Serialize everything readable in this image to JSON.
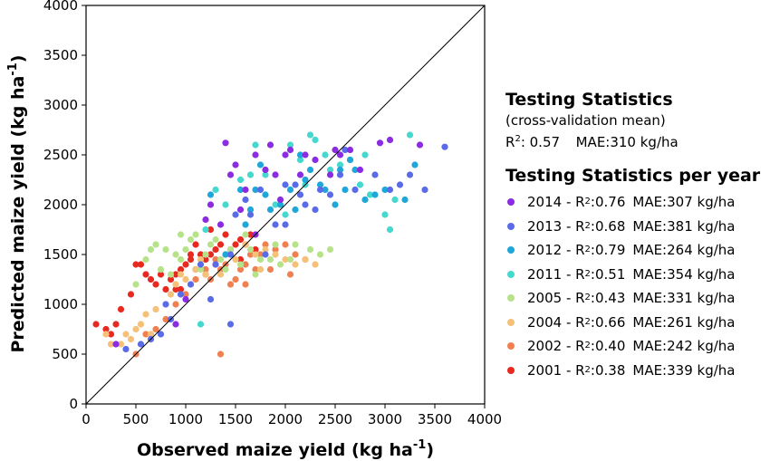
{
  "chart_data": {
    "type": "scatter",
    "xlabel": "Observed maize yield",
    "xlabel_unit": "(kg ha",
    "ylabel": "Predicted maize yield",
    "ylabel_unit": "(kg ha",
    "unit_exponent": "-1",
    "unit_close": ")",
    "xlim": [
      0,
      4000
    ],
    "ylim": [
      0,
      4000
    ],
    "xticks": [
      0,
      500,
      1000,
      1500,
      2000,
      2500,
      3000,
      3500,
      4000
    ],
    "yticks": [
      0,
      500,
      1000,
      1500,
      2000,
      2500,
      3000,
      3500,
      4000
    ],
    "reference_line": "1:1",
    "grid": false,
    "legend_position": "right",
    "series": [
      {
        "name": "2014",
        "color": "#8b2be2",
        "points": [
          [
            1200,
            1850
          ],
          [
            1250,
            2000
          ],
          [
            1400,
            2620
          ],
          [
            1450,
            2300
          ],
          [
            1550,
            1950
          ],
          [
            1600,
            2150
          ],
          [
            1700,
            2500
          ],
          [
            1800,
            2350
          ],
          [
            1850,
            2600
          ],
          [
            1900,
            2300
          ],
          [
            2050,
            2550
          ],
          [
            2200,
            2500
          ],
          [
            2300,
            2450
          ],
          [
            2450,
            2300
          ],
          [
            2500,
            2550
          ],
          [
            2650,
            2550
          ],
          [
            2750,
            2350
          ],
          [
            2950,
            2620
          ],
          [
            3050,
            2650
          ],
          [
            3350,
            2600
          ],
          [
            1500,
            2400
          ],
          [
            2000,
            2500
          ],
          [
            1350,
            1800
          ],
          [
            900,
            800
          ],
          [
            1700,
            1700
          ],
          [
            2150,
            2300
          ],
          [
            1000,
            1050
          ],
          [
            300,
            600
          ],
          [
            1950,
            2050
          ],
          [
            2550,
            2500
          ]
        ]
      },
      {
        "name": "2013",
        "color": "#5a6be8",
        "points": [
          [
            400,
            550
          ],
          [
            650,
            650
          ],
          [
            750,
            700
          ],
          [
            850,
            850
          ],
          [
            950,
            1100
          ],
          [
            1050,
            1200
          ],
          [
            1150,
            1400
          ],
          [
            1300,
            1400
          ],
          [
            1450,
            1500
          ],
          [
            1500,
            1900
          ],
          [
            1600,
            2050
          ],
          [
            1650,
            1900
          ],
          [
            1750,
            2150
          ],
          [
            1800,
            1500
          ],
          [
            1900,
            1800
          ],
          [
            2000,
            2200
          ],
          [
            2100,
            2200
          ],
          [
            2150,
            2100
          ],
          [
            2200,
            2000
          ],
          [
            2300,
            1950
          ],
          [
            2350,
            2150
          ],
          [
            2450,
            2100
          ],
          [
            2550,
            2300
          ],
          [
            2600,
            2550
          ],
          [
            2700,
            2150
          ],
          [
            2900,
            2300
          ],
          [
            3050,
            2150
          ],
          [
            3150,
            2200
          ],
          [
            3250,
            2300
          ],
          [
            3400,
            2150
          ],
          [
            3600,
            2580
          ],
          [
            1450,
            800
          ],
          [
            550,
            600
          ],
          [
            2000,
            1800
          ],
          [
            1250,
            1050
          ],
          [
            800,
            1000
          ]
        ]
      },
      {
        "name": "2012",
        "color": "#1ea7d8",
        "points": [
          [
            1250,
            2100
          ],
          [
            1550,
            2150
          ],
          [
            1650,
            1950
          ],
          [
            1700,
            2150
          ],
          [
            1800,
            2100
          ],
          [
            1850,
            1950
          ],
          [
            1950,
            2000
          ],
          [
            2050,
            2150
          ],
          [
            2100,
            1950
          ],
          [
            2200,
            2250
          ],
          [
            2250,
            2350
          ],
          [
            2350,
            2200
          ],
          [
            2400,
            2150
          ],
          [
            2500,
            2000
          ],
          [
            2600,
            2150
          ],
          [
            2700,
            2350
          ],
          [
            2800,
            2050
          ],
          [
            2900,
            2100
          ],
          [
            3000,
            2150
          ],
          [
            3200,
            2050
          ],
          [
            3300,
            2400
          ],
          [
            1400,
            1500
          ],
          [
            1750,
            2400
          ],
          [
            2550,
            2350
          ],
          [
            1600,
            1800
          ],
          [
            2150,
            2500
          ],
          [
            2650,
            2450
          ]
        ]
      },
      {
        "name": "2011",
        "color": "#45d8cf",
        "points": [
          [
            1300,
            2150
          ],
          [
            1400,
            2000
          ],
          [
            1550,
            2250
          ],
          [
            1700,
            2600
          ],
          [
            1800,
            2300
          ],
          [
            2050,
            2600
          ],
          [
            2150,
            2450
          ],
          [
            2250,
            2700
          ],
          [
            2400,
            2500
          ],
          [
            2450,
            2350
          ],
          [
            2550,
            2400
          ],
          [
            2650,
            2450
          ],
          [
            2750,
            2200
          ],
          [
            2850,
            2100
          ],
          [
            3000,
            1900
          ],
          [
            3050,
            1750
          ],
          [
            3100,
            2050
          ],
          [
            3250,
            2700
          ],
          [
            2200,
            2200
          ],
          [
            1900,
            2000
          ],
          [
            1200,
            1750
          ],
          [
            2000,
            1900
          ],
          [
            1650,
            2300
          ],
          [
            1150,
            800
          ],
          [
            2800,
            2500
          ],
          [
            2300,
            2650
          ]
        ]
      },
      {
        "name": "2005",
        "color": "#b6e38a",
        "points": [
          [
            600,
            1450
          ],
          [
            650,
            1550
          ],
          [
            750,
            1350
          ],
          [
            800,
            1550
          ],
          [
            850,
            1300
          ],
          [
            900,
            1500
          ],
          [
            950,
            1700
          ],
          [
            1000,
            1550
          ],
          [
            1050,
            1650
          ],
          [
            1150,
            1350
          ],
          [
            1200,
            1500
          ],
          [
            1250,
            1600
          ],
          [
            1350,
            1450
          ],
          [
            1450,
            1550
          ],
          [
            1550,
            1400
          ],
          [
            1650,
            1550
          ],
          [
            1750,
            1450
          ],
          [
            1850,
            1450
          ],
          [
            1950,
            1400
          ],
          [
            2100,
            1600
          ],
          [
            2250,
            1550
          ],
          [
            2350,
            1500
          ],
          [
            2450,
            1550
          ],
          [
            1300,
            1650
          ],
          [
            500,
            1200
          ],
          [
            1700,
            1300
          ],
          [
            2050,
            1450
          ],
          [
            700,
            1600
          ],
          [
            1100,
            1700
          ],
          [
            1600,
            1700
          ],
          [
            1900,
            1600
          ],
          [
            950,
            1450
          ],
          [
            1400,
            1350
          ]
        ]
      },
      {
        "name": "2004",
        "color": "#f5c078",
        "points": [
          [
            200,
            700
          ],
          [
            250,
            600
          ],
          [
            350,
            600
          ],
          [
            450,
            650
          ],
          [
            500,
            750
          ],
          [
            550,
            800
          ],
          [
            600,
            900
          ],
          [
            700,
            950
          ],
          [
            800,
            1000
          ],
          [
            850,
            1100
          ],
          [
            900,
            1200
          ],
          [
            950,
            1300
          ],
          [
            1000,
            1250
          ],
          [
            1100,
            1350
          ],
          [
            1200,
            1300
          ],
          [
            1300,
            1400
          ],
          [
            1400,
            1500
          ],
          [
            1500,
            1450
          ],
          [
            1600,
            1600
          ],
          [
            1700,
            1500
          ],
          [
            1800,
            1550
          ],
          [
            1900,
            1500
          ],
          [
            2000,
            1450
          ],
          [
            2100,
            1400
          ],
          [
            2200,
            1450
          ],
          [
            2300,
            1400
          ],
          [
            650,
            700
          ],
          [
            1150,
            1450
          ],
          [
            1750,
            1350
          ],
          [
            400,
            700
          ],
          [
            1350,
            1300
          ]
        ]
      },
      {
        "name": "2002",
        "color": "#f08050",
        "points": [
          [
            500,
            500
          ],
          [
            600,
            700
          ],
          [
            700,
            750
          ],
          [
            800,
            850
          ],
          [
            900,
            1000
          ],
          [
            1000,
            1100
          ],
          [
            1100,
            1250
          ],
          [
            1200,
            1350
          ],
          [
            1250,
            1250
          ],
          [
            1300,
            1450
          ],
          [
            1350,
            1350
          ],
          [
            1400,
            1400
          ],
          [
            1450,
            1550
          ],
          [
            1500,
            1250
          ],
          [
            1550,
            1350
          ],
          [
            1600,
            1400
          ],
          [
            1650,
            1500
          ],
          [
            1700,
            1350
          ],
          [
            1750,
            1500
          ],
          [
            1800,
            1600
          ],
          [
            1900,
            1550
          ],
          [
            2000,
            1600
          ],
          [
            2100,
            1500
          ],
          [
            2200,
            1450
          ],
          [
            1350,
            500
          ],
          [
            1450,
            1200
          ],
          [
            1600,
            1200
          ],
          [
            1850,
            1350
          ],
          [
            2050,
            1300
          ]
        ]
      },
      {
        "name": "2001",
        "color": "#e8291f",
        "points": [
          [
            100,
            800
          ],
          [
            200,
            750
          ],
          [
            250,
            700
          ],
          [
            300,
            800
          ],
          [
            350,
            950
          ],
          [
            450,
            1100
          ],
          [
            500,
            1400
          ],
          [
            550,
            1400
          ],
          [
            600,
            1300
          ],
          [
            650,
            1250
          ],
          [
            700,
            1200
          ],
          [
            750,
            1300
          ],
          [
            800,
            1150
          ],
          [
            850,
            1250
          ],
          [
            900,
            1300
          ],
          [
            950,
            1350
          ],
          [
            1000,
            1400
          ],
          [
            1050,
            1450
          ],
          [
            1100,
            1350
          ],
          [
            1150,
            1500
          ],
          [
            1200,
            1450
          ],
          [
            1250,
            1500
          ],
          [
            1300,
            1550
          ],
          [
            1350,
            1600
          ],
          [
            1400,
            1500
          ],
          [
            1450,
            1550
          ],
          [
            1500,
            1600
          ],
          [
            1550,
            1650
          ],
          [
            1600,
            1600
          ],
          [
            1650,
            1700
          ],
          [
            1700,
            1550
          ],
          [
            1100,
            1600
          ],
          [
            1250,
            1750
          ],
          [
            1400,
            1700
          ],
          [
            900,
            1150
          ],
          [
            1300,
            1400
          ],
          [
            1550,
            1450
          ],
          [
            1200,
            1300
          ],
          [
            1050,
            1500
          ],
          [
            950,
            1150
          ]
        ]
      }
    ]
  },
  "panel": {
    "title": "Testing Statistics",
    "subtitle": "(cross-validation mean)",
    "r2_label": "R",
    "r2_exp": "2",
    "overall": ": 0.57",
    "overall_mae": "MAE:310 kg/ha",
    "per_year_title": "Testing Statistics per year",
    "items": [
      {
        "year": "2014 - R",
        "exp": "2",
        "r2": ":0.76",
        "mae": "MAE:307 kg/ha"
      },
      {
        "year": "2013 - R",
        "exp": "2",
        "r2": ":0.68",
        "mae": "MAE:381 kg/ha"
      },
      {
        "year": "2012 - R",
        "exp": "2",
        "r2": ":0.79",
        "mae": "MAE:264 kg/ha"
      },
      {
        "year": "2011 - R",
        "exp": "2",
        "r2": ":0.51",
        "mae": "MAE:354 kg/ha"
      },
      {
        "year": "2005 - R",
        "exp": "2",
        "r2": ":0.43",
        "mae": "MAE:331 kg/ha"
      },
      {
        "year": "2004 - R",
        "exp": "2",
        "r2": ":0.66",
        "mae": "MAE:261 kg/ha"
      },
      {
        "year": "2002 - R",
        "exp": "2",
        "r2": ":0.40",
        "mae": "MAE:242 kg/ha"
      },
      {
        "year": "2001 - R",
        "exp": "2",
        "r2": ":0.38",
        "mae": "MAE:339 kg/ha"
      }
    ]
  }
}
